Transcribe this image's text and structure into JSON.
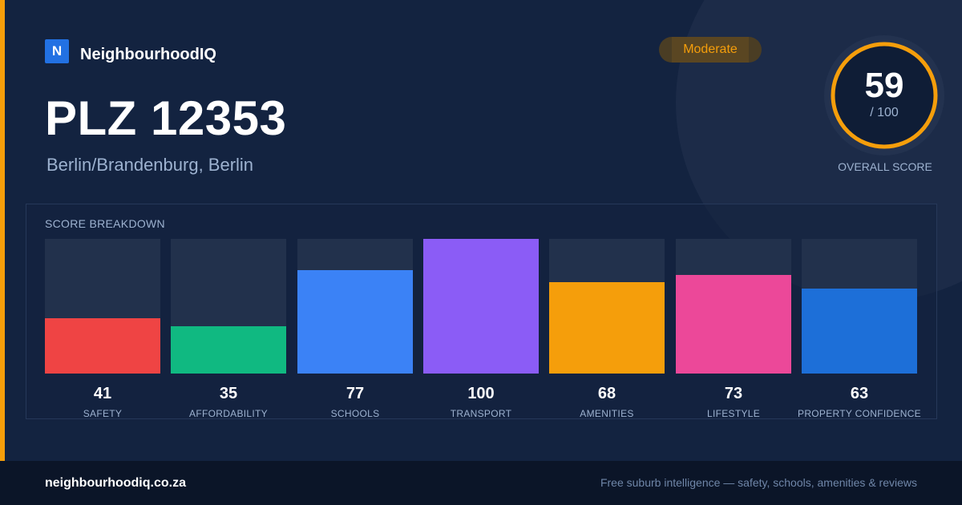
{
  "brand": {
    "logo_letter": "N",
    "name": "NeighbourhoodIQ"
  },
  "header": {
    "title": "PLZ 12353",
    "subtitle": "Berlin/Brandenburg, Berlin",
    "badge": "Moderate"
  },
  "overall": {
    "score": "59",
    "max": "/ 100",
    "caption": "OVERALL SCORE",
    "fraction": 0.59,
    "ring_color": "#f59e0b"
  },
  "breakdown": {
    "title": "SCORE BREAKDOWN"
  },
  "chart_data": {
    "type": "bar",
    "categories": [
      "SAFETY",
      "AFFORDABILITY",
      "SCHOOLS",
      "TRANSPORT",
      "AMENITIES",
      "LIFESTYLE",
      "PROPERTY CONFIDENCE"
    ],
    "values": [
      41,
      35,
      77,
      100,
      68,
      73,
      63
    ],
    "colors": [
      "#ef4444",
      "#10b981",
      "#3b82f6",
      "#8b5cf6",
      "#f59e0b",
      "#ec4899",
      "#1d6fd8"
    ],
    "ylim": [
      0,
      100
    ],
    "title": "SCORE BREAKDOWN"
  },
  "footer": {
    "url": "neighbourhoodiq.co.za",
    "tagline": "Free suburb intelligence — safety, schools, amenities & reviews"
  }
}
